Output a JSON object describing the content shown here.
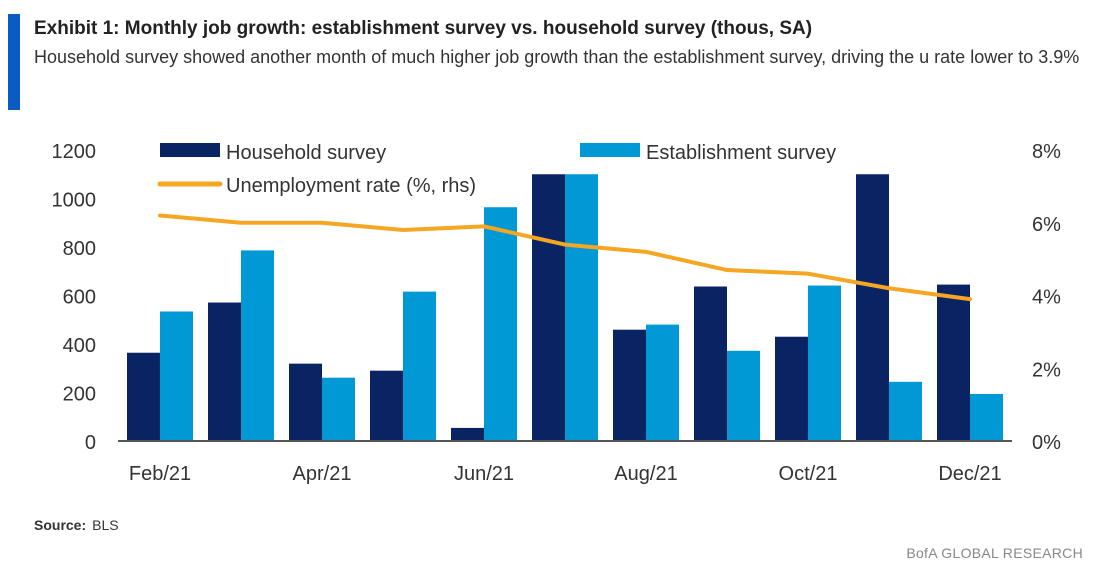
{
  "header": {
    "title": "Exhibit 1: Monthly job growth: establishment survey vs. household survey (thous, SA)",
    "subtitle": "Household survey showed another month of much higher job growth than the establishment survey, driving the u rate lower to 3.9%"
  },
  "footer": {
    "source_label": "Source:",
    "source": "BLS",
    "brand": "BofA GLOBAL RESEARCH"
  },
  "chart_data": {
    "type": "bar",
    "title": "Exhibit 1: Monthly job growth: establishment survey vs. household survey (thous, SA)",
    "categories": [
      "Feb/21",
      "Mar/21",
      "Apr/21",
      "May/21",
      "Jun/21",
      "Jul/21",
      "Aug/21",
      "Sep/21",
      "Oct/21",
      "Nov/21",
      "Dec/21"
    ],
    "x_tick_labels": [
      "Feb/21",
      "Apr/21",
      "Jun/21",
      "Aug/21",
      "Oct/21",
      "Dec/21"
    ],
    "series": [
      {
        "name": "Household survey",
        "type": "bar",
        "axis": "left",
        "color": "#0a2463",
        "values": [
          364,
          571,
          319,
          290,
          54,
          1100,
          459,
          637,
          430,
          1100,
          645
        ]
      },
      {
        "name": "Establishment survey",
        "type": "bar",
        "axis": "left",
        "color": "#0099d6",
        "values": [
          534,
          786,
          261,
          616,
          964,
          1100,
          480,
          372,
          641,
          244,
          194
        ]
      },
      {
        "name": "Unemployment rate (%, rhs)",
        "type": "line",
        "axis": "right",
        "color": "#f5a623",
        "values": [
          6.2,
          6.0,
          6.0,
          5.8,
          5.9,
          5.4,
          5.2,
          4.7,
          4.6,
          4.2,
          3.9
        ]
      }
    ],
    "ylim": [
      0,
      1200
    ],
    "y_ticks": [
      "0",
      "200",
      "400",
      "600",
      "800",
      "1000",
      "1200"
    ],
    "y2lim": [
      0,
      8
    ],
    "y2_ticks": [
      "0%",
      "2%",
      "4%",
      "6%",
      "8%"
    ],
    "grid": false,
    "legend": "top"
  }
}
